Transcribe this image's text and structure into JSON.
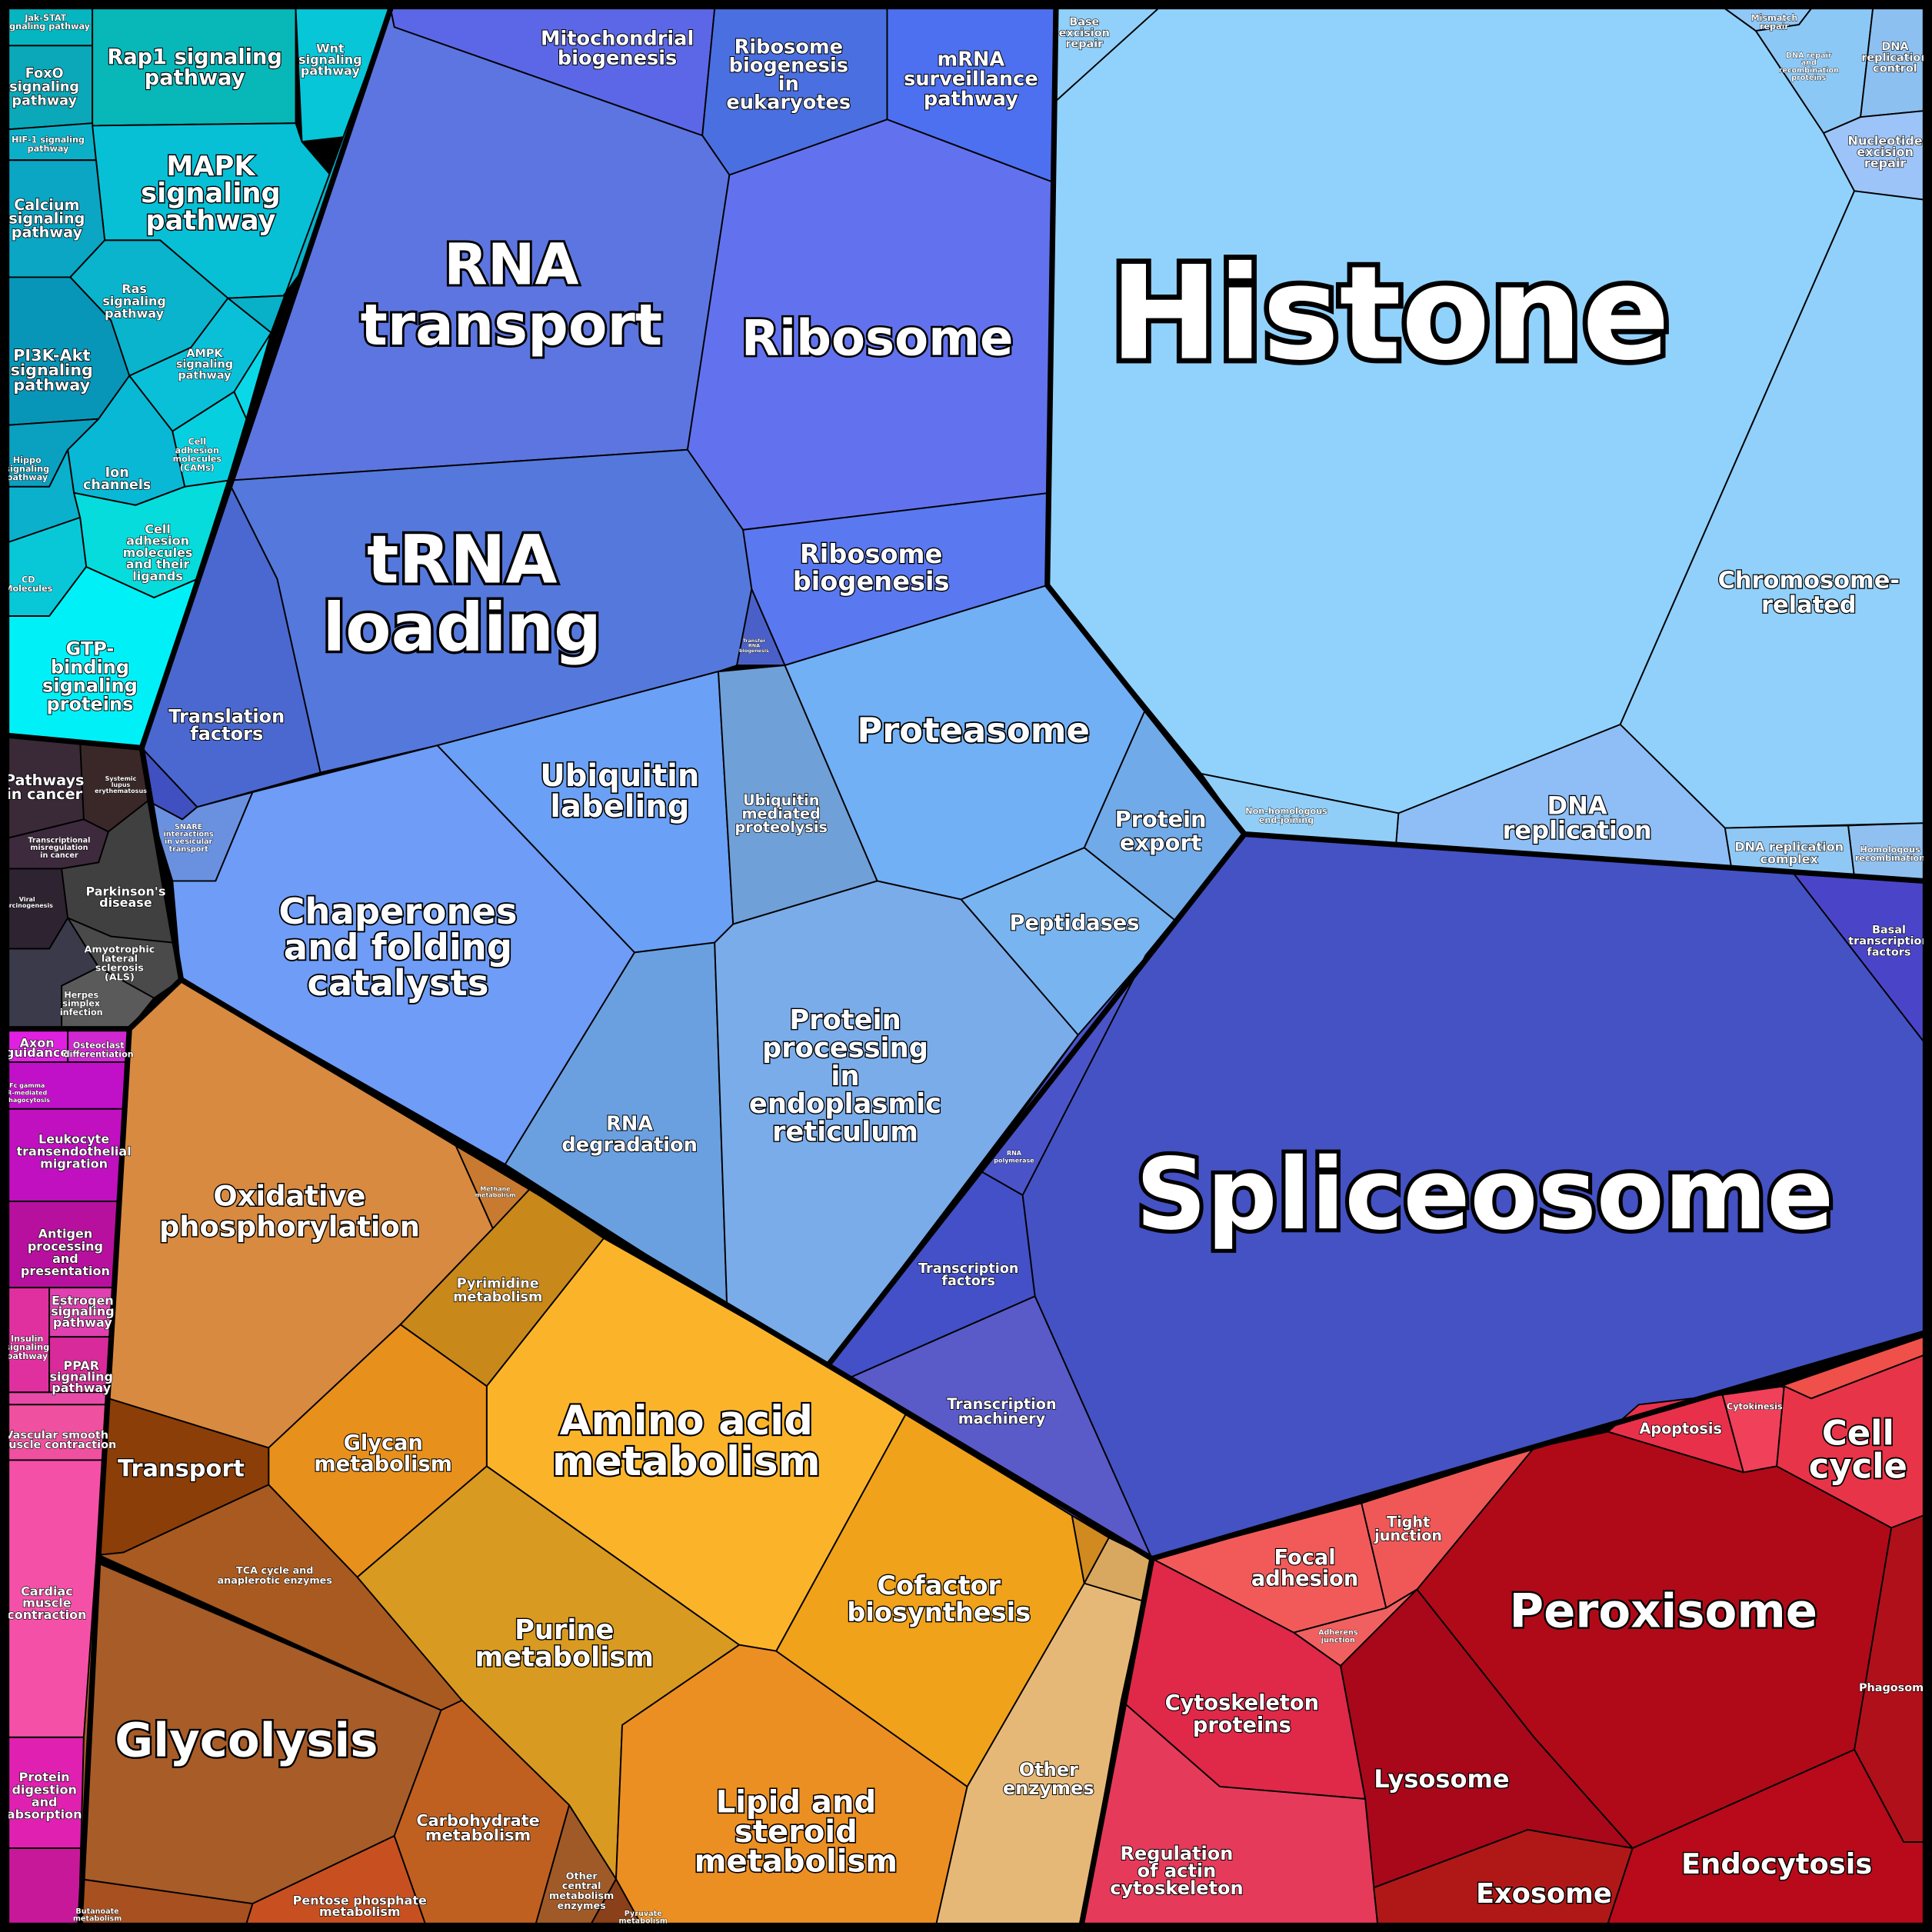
{
  "cells": [
    {
      "label": [
        "Histone"
      ]
    },
    {
      "label": [
        "Spliceosome"
      ]
    },
    {
      "label": [
        "RNA",
        "transport"
      ]
    },
    {
      "label": [
        "tRNA",
        "loading"
      ]
    },
    {
      "label": [
        "Ribosome"
      ]
    },
    {
      "label": [
        "Glycolysis"
      ]
    },
    {
      "label": [
        "Peroxisome"
      ]
    },
    {
      "label": [
        "Amino acid",
        "metabolism"
      ]
    },
    {
      "label": [
        "Chaperones",
        "and folding",
        "catalysts"
      ]
    },
    {
      "label": [
        "Proteasome"
      ]
    },
    {
      "label": [
        "Ubiquitin",
        "labeling"
      ]
    },
    {
      "label": [
        "Protein",
        "processing",
        "in",
        "endoplasmic",
        "reticulum"
      ]
    },
    {
      "label": [
        "Oxidative",
        "phosphorylation"
      ]
    },
    {
      "label": [
        "Lipid and",
        "steroid",
        "metabolism"
      ]
    },
    {
      "label": [
        "Purine",
        "metabolism"
      ]
    },
    {
      "label": [
        "Cofactor",
        "biosynthesis"
      ]
    },
    {
      "label": [
        "Glycan",
        "metabolism"
      ]
    },
    {
      "label": [
        "Transport"
      ]
    },
    {
      "label": [
        "Ribosome",
        "biogenesis"
      ]
    },
    {
      "label": [
        "Mitochondrial",
        "biogenesis"
      ]
    },
    {
      "label": [
        "Ribosome",
        "biogenesis",
        "in",
        "eukaryotes"
      ]
    },
    {
      "label": [
        "mRNA",
        "surveillance",
        "pathway"
      ]
    },
    {
      "label": [
        "Translation",
        "factors"
      ]
    },
    {
      "label": [
        "Ubiquitin",
        "mediated",
        "proteolysis"
      ]
    },
    {
      "label": [
        "Protein",
        "export"
      ]
    },
    {
      "label": [
        "Peptidases"
      ]
    },
    {
      "label": [
        "RNA",
        "degradation"
      ]
    },
    {
      "label": [
        "RNA",
        "polymerase"
      ]
    },
    {
      "label": [
        "Transcription",
        "factors"
      ]
    },
    {
      "label": [
        "Transcription",
        "machinery"
      ]
    },
    {
      "label": [
        "Base",
        "excision",
        "repair"
      ]
    },
    {
      "label": [
        "Mismatch",
        "repair"
      ]
    },
    {
      "label": [
        "DNA repair",
        "and",
        "recombination",
        "proteins"
      ]
    },
    {
      "label": [
        "DNA",
        "replication",
        "control"
      ]
    },
    {
      "label": [
        "Nucleotide",
        "excision",
        "repair"
      ]
    },
    {
      "label": [
        "Chromosome-",
        "related"
      ]
    },
    {
      "label": [
        "DNA",
        "replication"
      ]
    },
    {
      "label": [
        "Non-homologous",
        "end-joining"
      ]
    },
    {
      "label": [
        "DNA replication",
        "complex"
      ]
    },
    {
      "label": [
        "Homologous",
        "recombination"
      ]
    },
    {
      "label": [
        "Basal",
        "transcription",
        "factors"
      ]
    },
    {
      "label": [
        "Cell",
        "cycle"
      ]
    },
    {
      "label": [
        "Apoptosis"
      ]
    },
    {
      "label": [
        "Cytokinesis"
      ]
    },
    {
      "label": [
        "Focal",
        "adhesion"
      ]
    },
    {
      "label": [
        "Tight",
        "junction"
      ]
    },
    {
      "label": [
        "Adherens",
        "junction"
      ]
    },
    {
      "label": [
        "Cytoskeleton",
        "proteins"
      ]
    },
    {
      "label": [
        "Lysosome"
      ]
    },
    {
      "label": [
        "Phagosome"
      ]
    },
    {
      "label": [
        "Regulation",
        "of actin",
        "cytoskeleton"
      ]
    },
    {
      "label": [
        "Exosome"
      ]
    },
    {
      "label": [
        "Endocytosis"
      ]
    },
    {
      "label": [
        "Other",
        "enzymes"
      ]
    },
    {
      "label": [
        "Carbohydrate",
        "metabolism"
      ]
    },
    {
      "label": [
        "Pentose phosphate",
        "metabolism"
      ]
    },
    {
      "label": [
        "Other",
        "central",
        "metabolism",
        "enzymes"
      ]
    },
    {
      "label": [
        "Pyruvate",
        "metabolism"
      ]
    },
    {
      "label": [
        "Butanoate",
        "metabolism"
      ]
    },
    {
      "label": [
        "TCA cycle and",
        "anaplerotic enzymes"
      ]
    },
    {
      "label": [
        "Pyrimidine",
        "metabolism"
      ]
    },
    {
      "label": [
        "Methane",
        "metabolism"
      ]
    },
    {
      "label": [
        "Rap1 signaling",
        "pathway"
      ]
    },
    {
      "label": [
        "MAPK",
        "signaling",
        "pathway"
      ]
    },
    {
      "label": [
        "Jak-STAT",
        "signaling pathway"
      ]
    },
    {
      "label": [
        "FoxO",
        "signaling",
        "pathway"
      ]
    },
    {
      "label": [
        "Wnt",
        "signaling",
        "pathway"
      ]
    },
    {
      "label": [
        "HIF-1 signaling",
        "pathway"
      ]
    },
    {
      "label": [
        "Calcium",
        "signaling",
        "pathway"
      ]
    },
    {
      "label": [
        "Ras",
        "signaling",
        "pathway"
      ]
    },
    {
      "label": [
        "PI3K-Akt",
        "signaling",
        "pathway"
      ]
    },
    {
      "label": [
        "AMPK",
        "signaling",
        "pathway"
      ]
    },
    {
      "label": [
        "Ion",
        "channels"
      ]
    },
    {
      "label": [
        "Cell",
        "adhesion",
        "molecules",
        "(CAMs)"
      ]
    },
    {
      "label": [
        "Hippo",
        "signaling",
        "pathway"
      ]
    },
    {
      "label": [
        "Cell",
        "adhesion",
        "molecules",
        "and their",
        "ligands"
      ]
    },
    {
      "label": [
        "CD",
        "Molecules"
      ]
    },
    {
      "label": [
        "GTP-",
        "binding",
        "signaling",
        "proteins"
      ]
    },
    {
      "label": [
        "Pathways",
        "in cancer"
      ]
    },
    {
      "label": [
        "Systemic",
        "lupus",
        "erythematosus"
      ]
    },
    {
      "label": [
        "Transcriptional",
        "misregulation",
        "in cancer"
      ]
    },
    {
      "label": [
        "Viral",
        "carcinogenesis"
      ]
    },
    {
      "label": [
        "Parkinson's",
        "disease"
      ]
    },
    {
      "label": [
        "Amyotrophic",
        "lateral",
        "sclerosis",
        "(ALS)"
      ]
    },
    {
      "label": [
        "Herpes",
        "simplex",
        "infection"
      ]
    },
    {
      "label": [
        "SNARE",
        "interactions",
        "in vesicular",
        "transport"
      ]
    },
    {
      "label": [
        "Axon",
        "guidance"
      ]
    },
    {
      "label": [
        "Osteoclast",
        "differentiation"
      ]
    },
    {
      "label": [
        "Fc gamma",
        "R-mediated",
        "phagocytosis"
      ]
    },
    {
      "label": [
        "Leukocyte",
        "transendothelial",
        "migration"
      ]
    },
    {
      "label": [
        "Antigen",
        "processing",
        "and",
        "presentation"
      ]
    },
    {
      "label": [
        "Estrogen",
        "signaling",
        "pathway"
      ]
    },
    {
      "label": [
        "Insulin",
        "signaling",
        "pathway"
      ]
    },
    {
      "label": [
        "PPAR",
        "signaling",
        "pathway"
      ]
    },
    {
      "label": [
        "Vascular smooth",
        "muscle contraction"
      ]
    },
    {
      "label": [
        "Cardiac",
        "muscle",
        "contraction"
      ]
    },
    {
      "label": [
        "Protein",
        "digestion",
        "and",
        "absorption"
      ]
    },
    {
      "label": [
        "Transfer",
        "RNA",
        "biogenesis"
      ]
    }
  ]
}
